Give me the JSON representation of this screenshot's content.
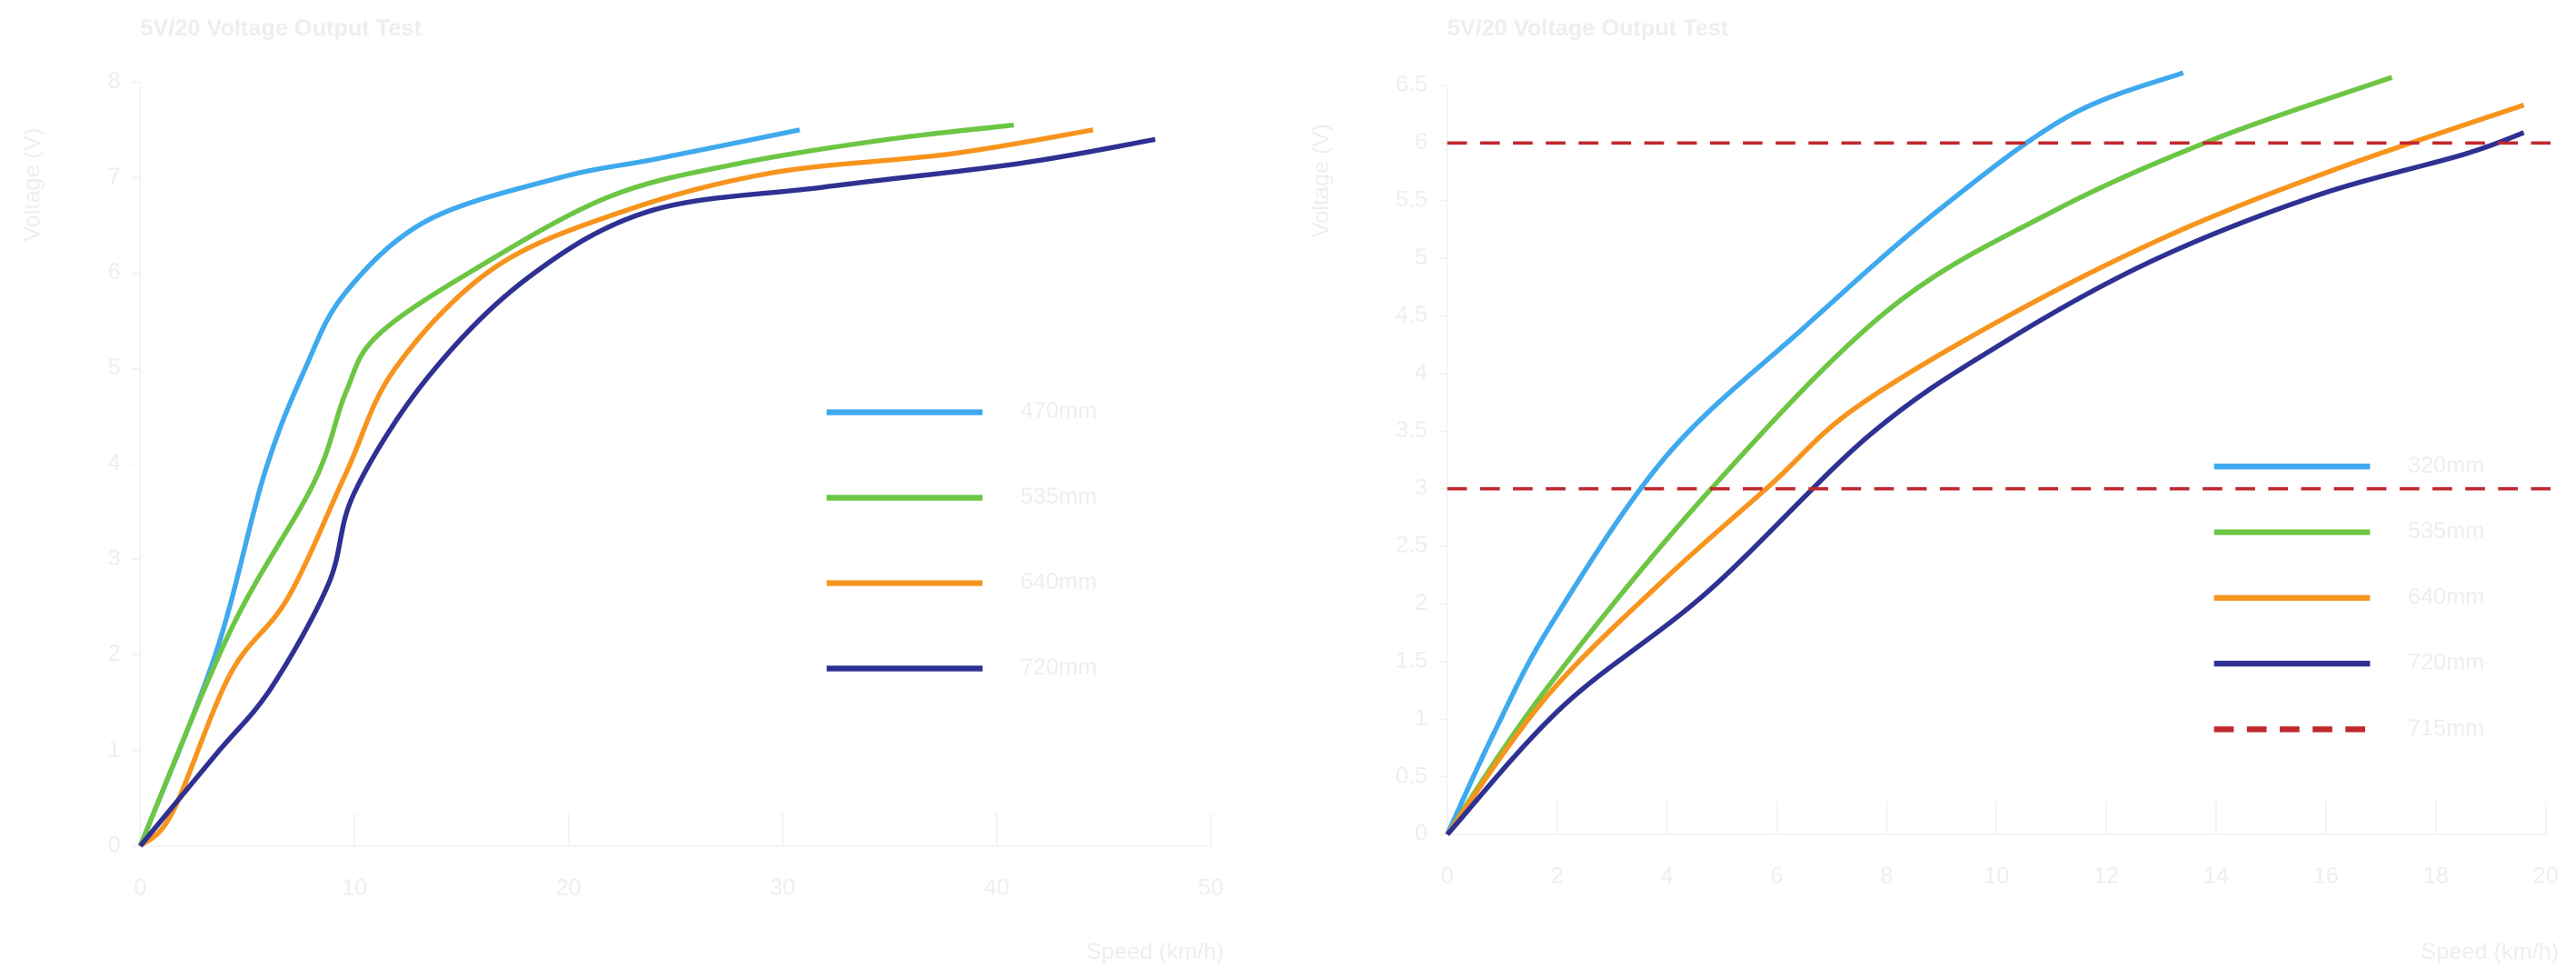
{
  "chart_data": [
    {
      "type": "line",
      "title": "5V/20 Voltage Output Test",
      "x_label": "Speed (km/h)",
      "y_label": "Voltage (V)",
      "xlim": [
        0,
        50
      ],
      "xticks": [
        0,
        10,
        20,
        30,
        40,
        50
      ],
      "ylim": [
        0,
        8
      ],
      "yticks": [
        0,
        1,
        2,
        3,
        4,
        5,
        6,
        7,
        8
      ],
      "legend": "right",
      "series": [
        {
          "name": "470mm",
          "color": "#3fa9ee",
          "x": [
            0,
            3.5,
            5.8,
            7.7,
            9.6,
            13.4,
            19.6,
            24.2,
            30.8
          ],
          "values": [
            0,
            2,
            3.9,
            5,
            5.8,
            6.55,
            7,
            7.2,
            7.5
          ]
        },
        {
          "name": "535mm",
          "color": "#6cc644",
          "x": [
            0,
            4.2,
            8.1,
            9.6,
            11.1,
            15.7,
            21.9,
            28,
            34.9,
            40.8
          ],
          "values": [
            0,
            2.25,
            3.8,
            4.75,
            5.35,
            6.05,
            6.8,
            7.15,
            7.4,
            7.55
          ]
        },
        {
          "name": "640mm",
          "color": "#f7941d",
          "x": [
            0,
            1.5,
            4.2,
            6.9,
            9.6,
            11.9,
            16.5,
            22.6,
            29.5,
            37.9,
            44.5
          ],
          "values": [
            0,
            0.35,
            1.8,
            2.6,
            3.9,
            5,
            6.05,
            6.65,
            7.05,
            7.25,
            7.5
          ]
        },
        {
          "name": "720mm",
          "color": "#2e3192",
          "x": [
            0,
            3.5,
            6.1,
            8.8,
            10,
            13.4,
            18.1,
            23.8,
            31.9,
            41.1,
            47.4
          ],
          "values": [
            0,
            0.95,
            1.65,
            2.75,
            3.7,
            4.9,
            5.95,
            6.65,
            6.9,
            7.15,
            7.4
          ]
        }
      ]
    },
    {
      "type": "line",
      "title": "5V/20 Voltage Output Test",
      "x_label": "Speed (km/h)",
      "y_label": "Voltage (V)",
      "xlim": [
        0,
        20
      ],
      "xticks": [
        0,
        2,
        4,
        6,
        8,
        10,
        12,
        14,
        16,
        18,
        20
      ],
      "ylim": [
        0,
        6.5
      ],
      "yticks": [
        0,
        0.5,
        1,
        1.5,
        2,
        2.5,
        3,
        3.5,
        4,
        4.5,
        5,
        5.5,
        6,
        6.5
      ],
      "legend": "right",
      "series": [
        {
          "name": "320mm",
          "color": "#3fa9ee",
          "x": [
            0,
            0.87,
            1.9,
            4,
            6.5,
            8.9,
            11.3,
            13.4
          ],
          "values": [
            0,
            0.9,
            1.83,
            3.29,
            4.4,
            5.4,
            6.23,
            6.61
          ]
        },
        {
          "name": "535mm",
          "color": "#6cc644",
          "x": [
            0,
            1.8,
            4.75,
            8,
            11,
            14,
            17.2
          ],
          "values": [
            0,
            1.26,
            2.97,
            4.54,
            5.4,
            6.04,
            6.57
          ]
        },
        {
          "name": "640mm",
          "color": "#f7941d",
          "x": [
            0,
            1.8,
            3.9,
            5.9,
            7.4,
            10.1,
            13.1,
            16.1,
            19.6
          ],
          "values": [
            0,
            1.19,
            2.19,
            3.04,
            3.69,
            4.47,
            5.19,
            5.76,
            6.33
          ]
        },
        {
          "name": "720mm",
          "color": "#2e3192",
          "x": [
            0,
            2.1,
            4.75,
            7.7,
            10.1,
            12.8,
            15.8,
            18.5,
            19.6
          ],
          "values": [
            0,
            1.11,
            2.11,
            3.47,
            4.26,
            4.97,
            5.54,
            5.9,
            6.09
          ]
        }
      ],
      "reference_lines": {
        "name": "715mm",
        "color": "#c0282d",
        "style": "dashed",
        "values": [
          3,
          6
        ]
      }
    }
  ]
}
